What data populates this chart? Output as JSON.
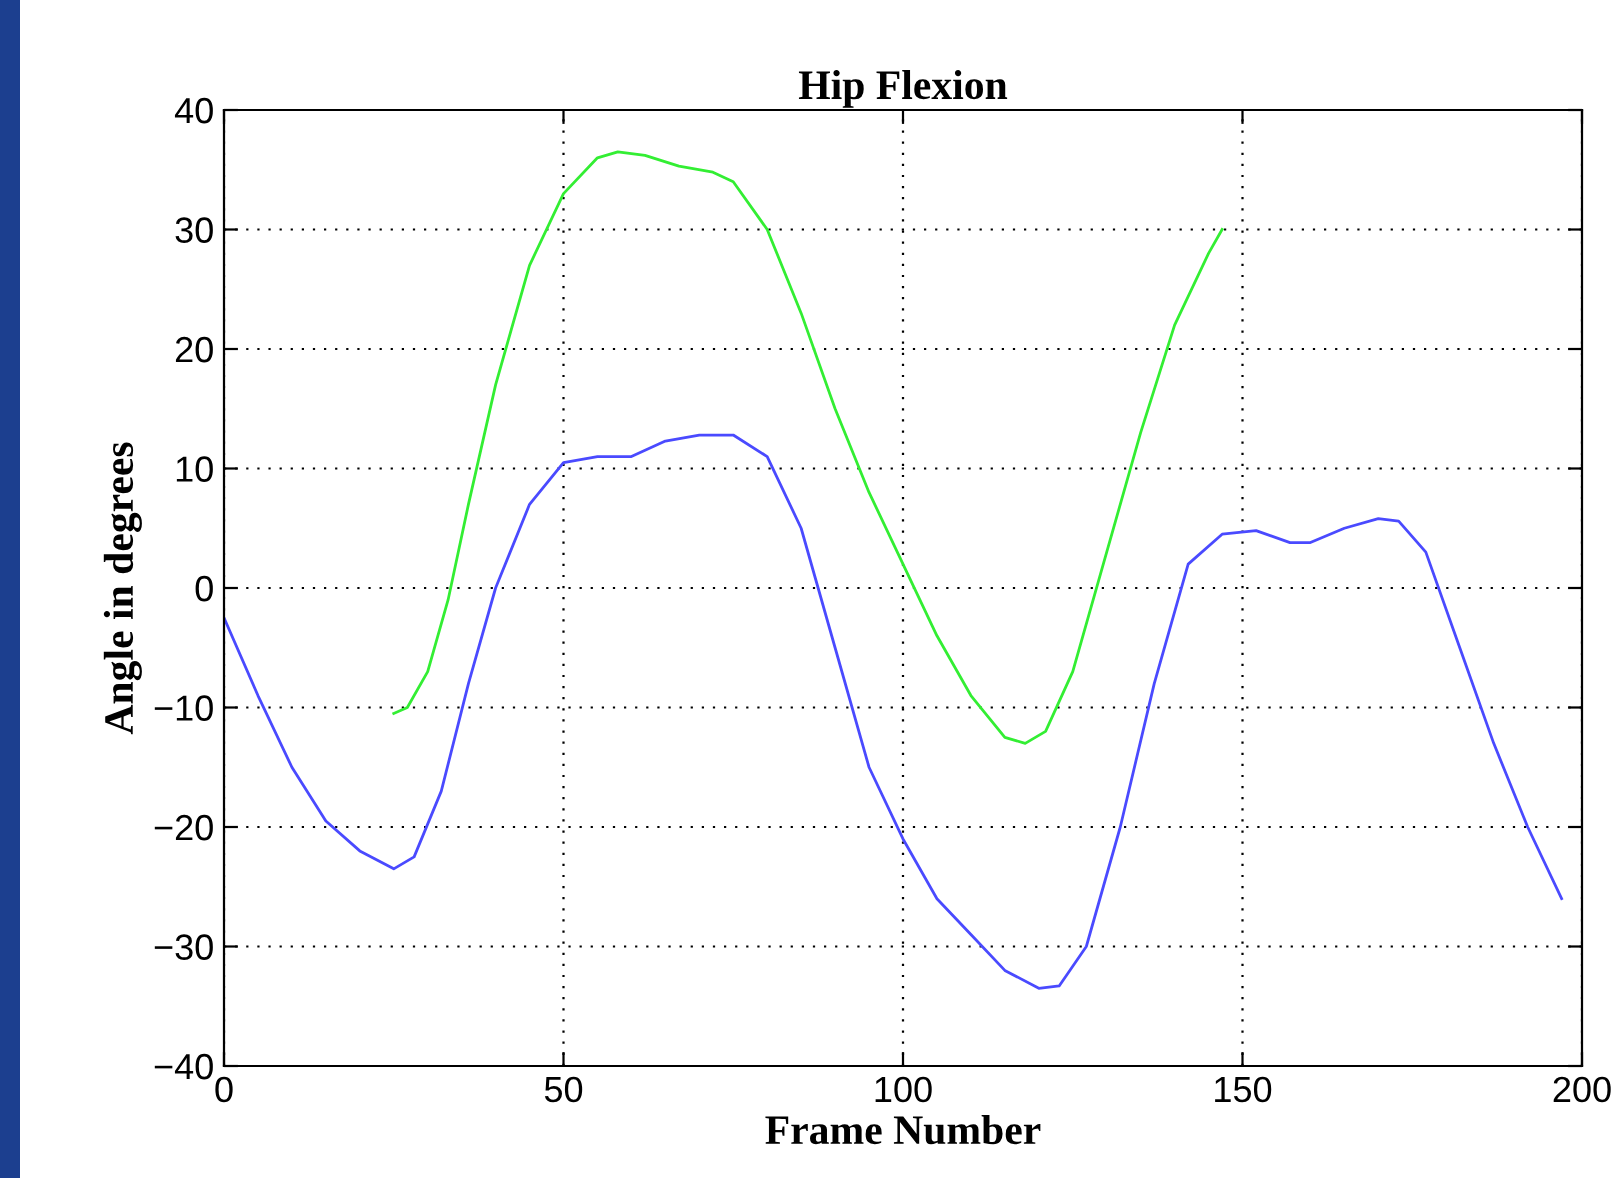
{
  "chart_data": {
    "type": "line",
    "title": "Hip Flexion",
    "xlabel": "Frame Number",
    "ylabel": "Angle in degrees",
    "xlim": [
      0,
      200
    ],
    "xticks": [
      0,
      50,
      100,
      150,
      200
    ],
    "ylim": [
      -40,
      40
    ],
    "yticks": [
      -40,
      -30,
      -20,
      -10,
      0,
      10,
      20,
      30,
      40
    ],
    "grid": true,
    "line_style": "solid",
    "series": [
      {
        "color": "#4a4aff",
        "x": [
          0,
          5,
          10,
          15,
          20,
          25,
          28,
          32,
          36,
          40,
          45,
          50,
          55,
          60,
          65,
          70,
          75,
          80,
          85,
          90,
          95,
          100,
          105,
          110,
          115,
          120,
          123,
          127,
          132,
          137,
          142,
          147,
          152,
          157,
          160,
          165,
          170,
          173,
          177,
          182,
          187,
          192,
          197
        ],
        "values": [
          -2.5,
          -9,
          -15,
          -19.5,
          -22,
          -23.5,
          -22.5,
          -17,
          -8,
          0,
          7,
          10.5,
          11,
          11,
          12.3,
          12.8,
          12.8,
          11,
          5,
          -5,
          -15,
          -21,
          -26,
          -29,
          -32,
          -33.5,
          -33.3,
          -30,
          -20,
          -8,
          2,
          4.5,
          4.8,
          3.8,
          3.8,
          5,
          5.8,
          5.6,
          3,
          -5,
          -13,
          -20,
          -26
        ]
      },
      {
        "color": "#33ee33",
        "x": [
          25,
          27,
          30,
          33,
          36,
          40,
          45,
          50,
          55,
          58,
          62,
          67,
          72,
          75,
          80,
          85,
          90,
          95,
          100,
          105,
          110,
          115,
          118,
          121,
          125,
          130,
          135,
          140,
          145,
          147
        ],
        "values": [
          -10.5,
          -10,
          -7,
          -1,
          7,
          17,
          27,
          33,
          36,
          36.5,
          36.2,
          35.3,
          34.8,
          34,
          30,
          23,
          15,
          8,
          2,
          -4,
          -9,
          -12.5,
          -13,
          -12,
          -7,
          3,
          13,
          22,
          28,
          30
        ]
      }
    ]
  }
}
